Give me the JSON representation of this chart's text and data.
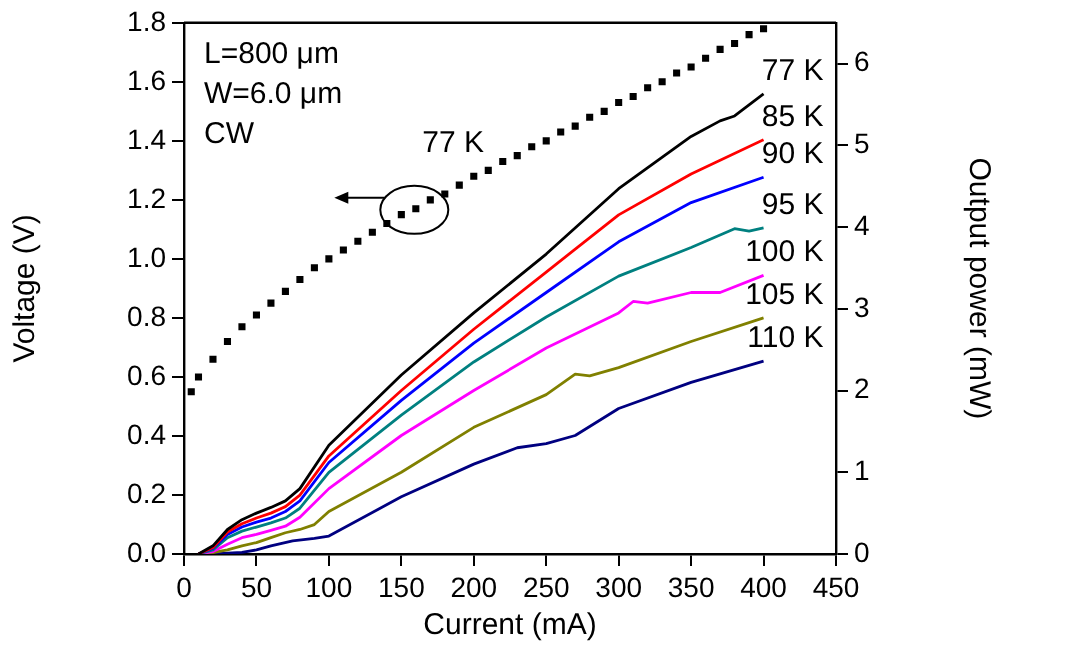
{
  "chart_data": {
    "type": "line",
    "xlabel": "Current (mA)",
    "ylabel": "Voltage (V)",
    "y2label": "Output power (mW)",
    "xlim": [
      0,
      450
    ],
    "xticks": [
      0,
      50,
      100,
      150,
      200,
      250,
      300,
      350,
      400,
      450
    ],
    "ylim": [
      0,
      1.8
    ],
    "yticks": [
      {
        "value": 0,
        "label": "0.0"
      },
      {
        "value": 0.2,
        "label": "0.2"
      },
      {
        "value": 0.4,
        "label": "0.4"
      },
      {
        "value": 0.6,
        "label": "0.6"
      },
      {
        "value": 0.8,
        "label": "0.8"
      },
      {
        "value": 1,
        "label": "1.0"
      },
      {
        "value": 1.2,
        "label": "1.2"
      },
      {
        "value": 1.4,
        "label": "1.4"
      },
      {
        "value": 1.6,
        "label": "1.6"
      },
      {
        "value": 1.8,
        "label": "1.8"
      }
    ],
    "y2lim": [
      0,
      6.5
    ],
    "y2ticks": [
      0,
      1,
      2,
      3,
      4,
      5,
      6
    ],
    "annotations": [
      "L=800 μm",
      "W=6.0 μm",
      "CW"
    ],
    "grid": false,
    "legend": false,
    "series": [
      {
        "name": "77 K",
        "type": "scatter",
        "marker": "square",
        "color": "#000000",
        "x": [
          5,
          10,
          20,
          30,
          40,
          50,
          60,
          70,
          80,
          90,
          100,
          110,
          120,
          130,
          140,
          150,
          160,
          170,
          180,
          190,
          200,
          210,
          220,
          230,
          240,
          250,
          260,
          270,
          280,
          290,
          300,
          310,
          320,
          330,
          340,
          350,
          360,
          370,
          380,
          390,
          400
        ],
        "values": [
          0.55,
          0.6,
          0.66,
          0.72,
          0.77,
          0.81,
          0.85,
          0.89,
          0.93,
          0.97,
          1.0,
          1.03,
          1.06,
          1.09,
          1.12,
          1.15,
          1.17,
          1.2,
          1.22,
          1.25,
          1.28,
          1.3,
          1.33,
          1.35,
          1.38,
          1.4,
          1.43,
          1.45,
          1.48,
          1.5,
          1.53,
          1.55,
          1.58,
          1.6,
          1.63,
          1.65,
          1.68,
          1.71,
          1.73,
          1.76,
          1.78
        ]
      },
      {
        "name": "77 K",
        "axis": "y2",
        "color": "#000000",
        "x": [
          10,
          20,
          30,
          40,
          50,
          60,
          70,
          80,
          100,
          150,
          200,
          250,
          300,
          350,
          370,
          380,
          400
        ],
        "values": [
          0,
          0.1,
          0.3,
          0.42,
          0.5,
          0.57,
          0.65,
          0.8,
          1.33,
          2.19,
          2.95,
          3.67,
          4.47,
          5.11,
          5.3,
          5.36,
          5.63
        ]
      },
      {
        "name": "85 K",
        "axis": "y2",
        "color": "#ff0000",
        "x": [
          10,
          20,
          30,
          40,
          50,
          60,
          70,
          80,
          100,
          150,
          200,
          250,
          300,
          350,
          400
        ],
        "values": [
          0,
          0.08,
          0.27,
          0.37,
          0.44,
          0.5,
          0.58,
          0.72,
          1.2,
          2.0,
          2.75,
          3.45,
          4.15,
          4.65,
          5.07
        ]
      },
      {
        "name": "90 K",
        "axis": "y2",
        "color": "#0000ff",
        "x": [
          10,
          20,
          30,
          40,
          50,
          60,
          70,
          80,
          100,
          150,
          200,
          250,
          300,
          350,
          400
        ],
        "values": [
          0,
          0.07,
          0.24,
          0.33,
          0.39,
          0.44,
          0.52,
          0.65,
          1.12,
          1.88,
          2.58,
          3.2,
          3.82,
          4.3,
          4.61
        ]
      },
      {
        "name": "95 K",
        "axis": "y2",
        "color": "#008080",
        "x": [
          10,
          20,
          30,
          40,
          50,
          60,
          70,
          80,
          100,
          150,
          200,
          250,
          300,
          350,
          380,
          390,
          400
        ],
        "values": [
          0,
          0.05,
          0.2,
          0.28,
          0.33,
          0.38,
          0.44,
          0.56,
          1.0,
          1.7,
          2.35,
          2.9,
          3.4,
          3.75,
          3.98,
          3.95,
          3.99
        ]
      },
      {
        "name": "100 K",
        "axis": "y2",
        "color": "#ff00ff",
        "x": [
          10,
          20,
          30,
          40,
          50,
          60,
          70,
          80,
          100,
          150,
          200,
          250,
          300,
          310,
          320,
          350,
          370,
          400
        ],
        "values": [
          0,
          0.03,
          0.12,
          0.2,
          0.24,
          0.29,
          0.34,
          0.45,
          0.8,
          1.45,
          2.0,
          2.52,
          2.95,
          3.09,
          3.07,
          3.2,
          3.2,
          3.41
        ]
      },
      {
        "name": "105 K",
        "axis": "y2",
        "color": "#808000",
        "x": [
          15,
          30,
          40,
          50,
          60,
          70,
          80,
          90,
          100,
          150,
          200,
          250,
          270,
          280,
          300,
          350,
          400
        ],
        "values": [
          0,
          0.05,
          0.1,
          0.14,
          0.2,
          0.26,
          0.3,
          0.36,
          0.52,
          1.0,
          1.55,
          1.95,
          2.2,
          2.18,
          2.28,
          2.6,
          2.89
        ]
      },
      {
        "name": "110 K",
        "axis": "y2",
        "color": "#000080",
        "x": [
          20,
          40,
          50,
          60,
          75,
          90,
          100,
          150,
          200,
          230,
          250,
          270,
          300,
          350,
          400
        ],
        "values": [
          0,
          0.02,
          0.05,
          0.1,
          0.16,
          0.19,
          0.22,
          0.7,
          1.1,
          1.3,
          1.35,
          1.45,
          1.78,
          2.1,
          2.36
        ]
      }
    ]
  }
}
